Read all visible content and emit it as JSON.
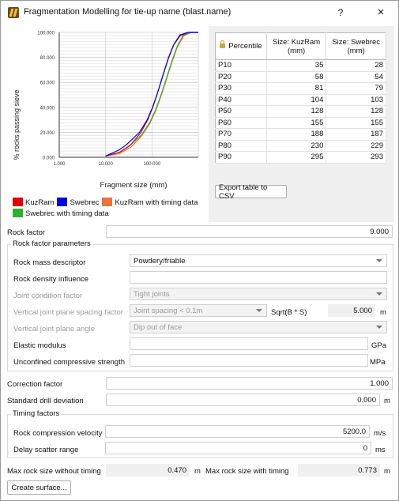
{
  "window": {
    "title": "Fragmentation Modelling for tie-up name (blast.name)",
    "help_label": "?",
    "close_label": "×"
  },
  "chart_data": {
    "type": "line",
    "title": "",
    "xlabel": "Fragment size (mm)",
    "ylabel": "% rocks passing sieve",
    "x_scale": "log",
    "xlim": [
      1,
      1000
    ],
    "ylim": [
      0,
      100
    ],
    "x_ticks": [
      "1.000",
      "10.000",
      "100.000"
    ],
    "y_ticks": [
      "0.000",
      "20.000",
      "40.000",
      "60.000",
      "80.000",
      "100.000"
    ],
    "grid": true,
    "legend_placement": "bottom",
    "series": [
      {
        "name": "KuzRam",
        "color": "#e00000",
        "x": [
          10,
          20,
          35,
          58,
          81,
          104,
          128,
          155,
          188,
          230,
          295,
          400,
          600
        ],
        "y": [
          1,
          4,
          10,
          20,
          30,
          40,
          50,
          60,
          70,
          80,
          90,
          97,
          100
        ]
      },
      {
        "name": "Swebrec",
        "color": "#0000e0",
        "x": [
          10,
          20,
          28,
          54,
          79,
          103,
          128,
          155,
          187,
          229,
          293,
          400,
          600
        ],
        "y": [
          1,
          6,
          10,
          20,
          30,
          40,
          50,
          60,
          70,
          80,
          90,
          98,
          100
        ]
      },
      {
        "name": "KuzRam with timing data",
        "color": "#f07040",
        "x": [
          10,
          20,
          35,
          60,
          90,
          120,
          150,
          185,
          225,
          275,
          350,
          480,
          700
        ],
        "y": [
          1,
          3,
          8,
          17,
          27,
          37,
          47,
          57,
          67,
          77,
          88,
          97,
          100
        ]
      },
      {
        "name": "Swebrec with timing data",
        "color": "#30b030",
        "x": [
          10,
          20,
          30,
          60,
          90,
          120,
          150,
          185,
          225,
          275,
          350,
          480,
          700
        ],
        "y": [
          1,
          4,
          8,
          18,
          28,
          38,
          48,
          58,
          68,
          78,
          89,
          98,
          100
        ]
      }
    ]
  },
  "legend": [
    {
      "label": "KuzRam",
      "color": "#e00000"
    },
    {
      "label": "Swebrec",
      "color": "#0000e0"
    },
    {
      "label": "KuzRam with timing data",
      "color": "#f07040"
    },
    {
      "label": "Swebrec with timing data",
      "color": "#30b030"
    }
  ],
  "table": {
    "headers": [
      "Percentile",
      "Size: KuzRam (mm)",
      "Size: Swebrec (mm)"
    ],
    "rows": [
      [
        "P10",
        "35",
        "28"
      ],
      [
        "P20",
        "58",
        "54"
      ],
      [
        "P30",
        "81",
        "79"
      ],
      [
        "P40",
        "104",
        "103"
      ],
      [
        "P50",
        "128",
        "128"
      ],
      [
        "P60",
        "155",
        "155"
      ],
      [
        "P70",
        "188",
        "187"
      ],
      [
        "P80",
        "230",
        "229"
      ],
      [
        "P90",
        "295",
        "293"
      ]
    ],
    "export_label": "Export table to CSV"
  },
  "rock_factor": {
    "label": "Rock factor",
    "value": "9.000"
  },
  "rock_params": {
    "title": "Rock factor parameters",
    "mass_descriptor": {
      "label": "Rock mass descriptor",
      "value": "Powdery/friable"
    },
    "density_influence": {
      "label": "Rock density influence",
      "value": ""
    },
    "joint_condition": {
      "label": "Joint condition factor",
      "value": "Tight joints"
    },
    "joint_spacing": {
      "label": "Vertical joint plane spacing factor",
      "value": "Joint spacing < 0.1m",
      "sqrt_label": "Sqrt(B * S)",
      "sqrt_value": "5.000",
      "unit": "m"
    },
    "joint_angle": {
      "label": "Vertical joint plane angle",
      "value": "Dip out of face"
    },
    "elastic": {
      "label": "Elastic modulus",
      "value": "",
      "unit": "GPa"
    },
    "ucs": {
      "label": "Unconfined compressive strength",
      "value": "",
      "unit": "MPa"
    }
  },
  "correction": {
    "label": "Correction factor",
    "value": "1.000"
  },
  "drill_dev": {
    "label": "Standard drill deviation",
    "value": "0.000",
    "unit": "m"
  },
  "timing": {
    "title": "Timing factors",
    "velocity": {
      "label": "Rock compression velocity",
      "value": "5200.0",
      "unit": "m/s"
    },
    "delay": {
      "label": "Delay scatter range",
      "value": "0",
      "unit": "ms"
    }
  },
  "max_rock": {
    "without_label": "Max rock size without timing",
    "without_value": "0.470",
    "without_unit": "m",
    "with_label": "Max rock size with timing",
    "with_value": "0.773",
    "with_unit": "m"
  },
  "create_surface_label": "Create surface..."
}
